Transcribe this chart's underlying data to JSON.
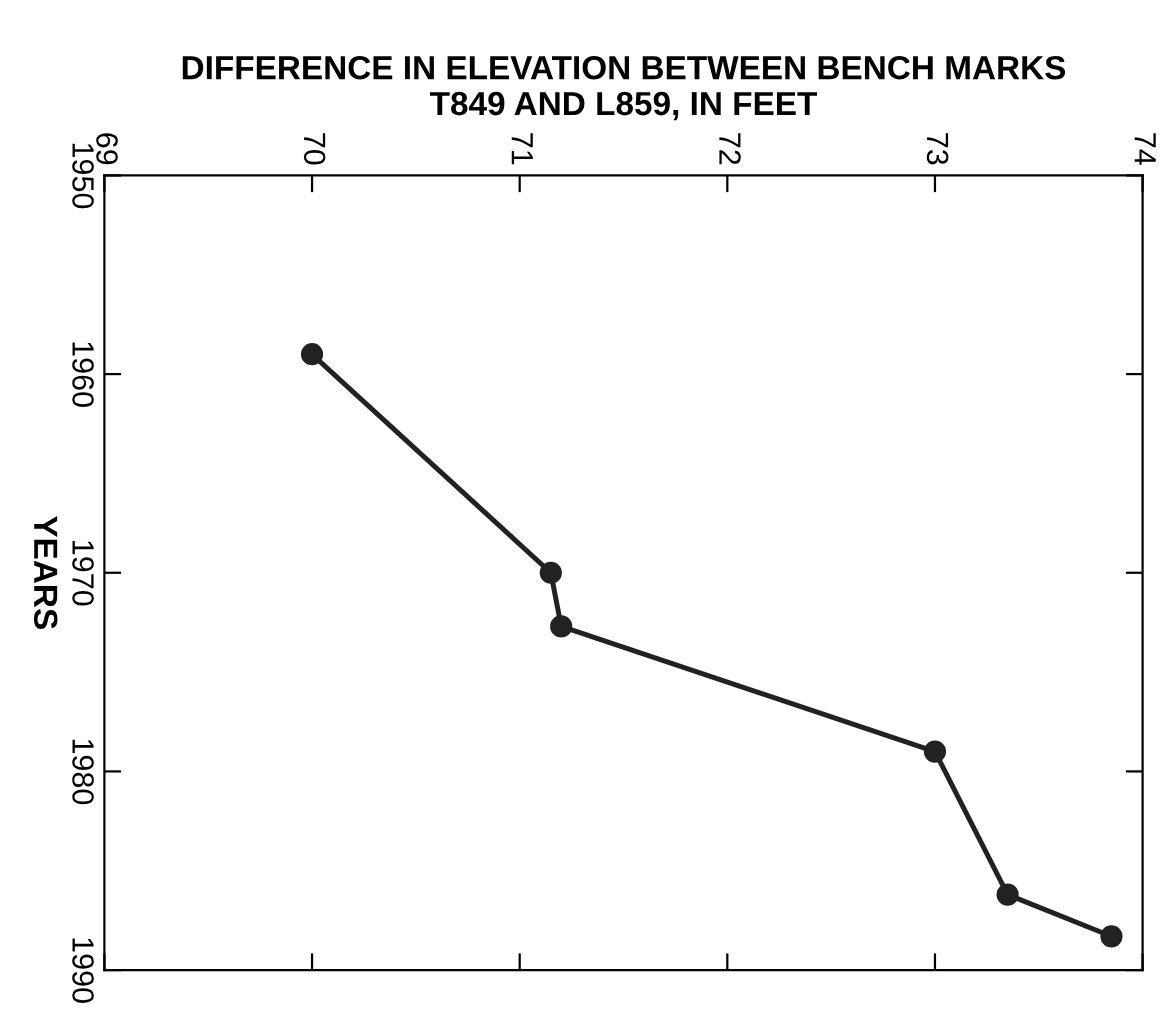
{
  "chart_data": {
    "type": "line",
    "xlabel": "DIFFERENCE IN ELEVATION BETWEEN BENCH MARKS\nT849 AND L859, IN FEET",
    "ylabel": "YEARS",
    "x": [
      70.0,
      71.15,
      71.2,
      73.0,
      73.35,
      73.85
    ],
    "series": [
      {
        "color": "#222222",
        "values": [
          1959,
          1970.0,
          1972.7,
          1979.0,
          1986.2,
          1988.3
        ]
      }
    ],
    "xlim": [
      69,
      74
    ],
    "xticks": [
      69,
      70,
      71,
      72,
      73,
      74
    ],
    "ylim": [
      1990,
      1950
    ],
    "yticks": [
      1950,
      1960,
      1970,
      1980,
      1990
    ],
    "marker": "circle",
    "line_style": "solid",
    "grid": false,
    "legend": false
  }
}
